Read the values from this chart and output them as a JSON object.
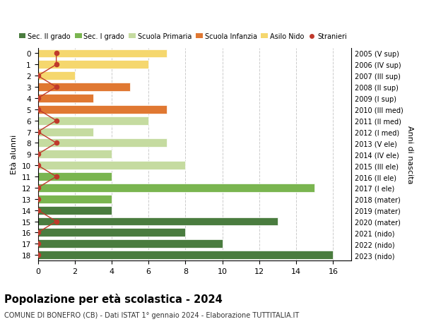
{
  "ages": [
    18,
    17,
    16,
    15,
    14,
    13,
    12,
    11,
    10,
    9,
    8,
    7,
    6,
    5,
    4,
    3,
    2,
    1,
    0
  ],
  "right_labels": [
    "2005 (V sup)",
    "2006 (IV sup)",
    "2007 (III sup)",
    "2008 (II sup)",
    "2009 (I sup)",
    "2010 (III med)",
    "2011 (II med)",
    "2012 (I med)",
    "2013 (V ele)",
    "2014 (IV ele)",
    "2015 (III ele)",
    "2016 (II ele)",
    "2017 (I ele)",
    "2018 (mater)",
    "2019 (mater)",
    "2020 (mater)",
    "2021 (nido)",
    "2022 (nido)",
    "2023 (nido)"
  ],
  "bar_values": [
    16,
    10,
    8,
    13,
    4,
    4,
    15,
    4,
    8,
    4,
    7,
    3,
    6,
    7,
    3,
    5,
    2,
    6,
    7
  ],
  "stranieri_x": [
    0,
    0,
    0,
    1,
    0,
    0,
    0,
    1,
    0,
    0,
    1,
    0,
    1,
    0,
    0,
    1,
    0,
    1,
    1
  ],
  "bar_colors": [
    "#4a7c3f",
    "#4a7c3f",
    "#4a7c3f",
    "#4a7c3f",
    "#4a7c3f",
    "#7ab550",
    "#7ab550",
    "#7ab550",
    "#c5dba0",
    "#c5dba0",
    "#c5dba0",
    "#c5dba0",
    "#c5dba0",
    "#e07832",
    "#e07832",
    "#e07832",
    "#f5d76e",
    "#f5d76e",
    "#f5d76e"
  ],
  "legend_labels": [
    "Sec. II grado",
    "Sec. I grado",
    "Scuola Primaria",
    "Scuola Infanzia",
    "Asilo Nido",
    "Stranieri"
  ],
  "legend_colors": [
    "#4a7c3f",
    "#7ab550",
    "#c5dba0",
    "#e07832",
    "#f5d76e",
    "#c0392b"
  ],
  "stranieri_color": "#c0392b",
  "title": "Popolazione per età scolastica - 2024",
  "subtitle": "COMUNE DI BONEFRO (CB) - Dati ISTAT 1° gennaio 2024 - Elaborazione TUTTITALIA.IT",
  "ylabel_left": "Età alunni",
  "ylabel_right": "Anni di nascita",
  "xlim_max": 17,
  "xticks": [
    0,
    2,
    4,
    6,
    8,
    10,
    12,
    14,
    16
  ],
  "background_color": "#ffffff",
  "grid_color": "#cccccc"
}
